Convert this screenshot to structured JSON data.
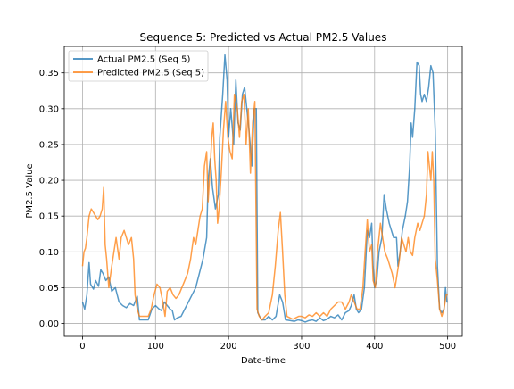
{
  "chart_data": {
    "type": "line",
    "title": "Sequence 5: Predicted vs Actual PM2.5 Values",
    "xlabel": "Date-time",
    "ylabel": "PM2.5 Value",
    "xlim": [
      -25,
      520
    ],
    "ylim": [
      -0.018,
      0.387
    ],
    "xticks": [
      0,
      100,
      200,
      300,
      400,
      500
    ],
    "yticks": [
      0.0,
      0.05,
      0.1,
      0.15,
      0.2,
      0.25,
      0.3,
      0.35
    ],
    "xtick_labels": [
      "0",
      "100",
      "200",
      "300",
      "400",
      "500"
    ],
    "ytick_labels": [
      "0.00",
      "0.05",
      "0.10",
      "0.15",
      "0.20",
      "0.25",
      "0.30",
      "0.35"
    ],
    "grid": true,
    "legend_position": "upper-left",
    "series": [
      {
        "name": "Actual PM2.5 (Seq 5)",
        "color": "#1f77b4",
        "points": [
          [
            0,
            0.03
          ],
          [
            3,
            0.02
          ],
          [
            6,
            0.04
          ],
          [
            9,
            0.085
          ],
          [
            11,
            0.055
          ],
          [
            15,
            0.048
          ],
          [
            18,
            0.06
          ],
          [
            22,
            0.052
          ],
          [
            25,
            0.075
          ],
          [
            28,
            0.07
          ],
          [
            32,
            0.06
          ],
          [
            36,
            0.065
          ],
          [
            40,
            0.045
          ],
          [
            45,
            0.05
          ],
          [
            50,
            0.03
          ],
          [
            55,
            0.025
          ],
          [
            60,
            0.022
          ],
          [
            65,
            0.028
          ],
          [
            70,
            0.025
          ],
          [
            75,
            0.038
          ],
          [
            78,
            0.005
          ],
          [
            82,
            0.005
          ],
          [
            90,
            0.005
          ],
          [
            95,
            0.02
          ],
          [
            100,
            0.025
          ],
          [
            105,
            0.02
          ],
          [
            108,
            0.018
          ],
          [
            112,
            0.03
          ],
          [
            116,
            0.025
          ],
          [
            120,
            0.02
          ],
          [
            123,
            0.018
          ],
          [
            126,
            0.005
          ],
          [
            130,
            0.008
          ],
          [
            135,
            0.01
          ],
          [
            140,
            0.02
          ],
          [
            145,
            0.03
          ],
          [
            150,
            0.04
          ],
          [
            155,
            0.05
          ],
          [
            160,
            0.07
          ],
          [
            165,
            0.09
          ],
          [
            170,
            0.12
          ],
          [
            172,
            0.2
          ],
          [
            175,
            0.23
          ],
          [
            178,
            0.19
          ],
          [
            182,
            0.16
          ],
          [
            186,
            0.18
          ],
          [
            188,
            0.26
          ],
          [
            192,
            0.32
          ],
          [
            195,
            0.375
          ],
          [
            198,
            0.34
          ],
          [
            200,
            0.26
          ],
          [
            203,
            0.3
          ],
          [
            207,
            0.25
          ],
          [
            210,
            0.34
          ],
          [
            213,
            0.28
          ],
          [
            216,
            0.27
          ],
          [
            219,
            0.32
          ],
          [
            222,
            0.33
          ],
          [
            225,
            0.3
          ],
          [
            228,
            0.27
          ],
          [
            232,
            0.22
          ],
          [
            235,
            0.3
          ],
          [
            238,
            0.3
          ],
          [
            240,
            0.015
          ],
          [
            245,
            0.005
          ],
          [
            250,
            0.005
          ],
          [
            255,
            0.01
          ],
          [
            260,
            0.005
          ],
          [
            265,
            0.01
          ],
          [
            270,
            0.04
          ],
          [
            274,
            0.03
          ],
          [
            278,
            0.005
          ],
          [
            285,
            0.004
          ],
          [
            290,
            0.003
          ],
          [
            295,
            0.005
          ],
          [
            300,
            0.004
          ],
          [
            305,
            0.002
          ],
          [
            310,
            0.004
          ],
          [
            315,
            0.005
          ],
          [
            320,
            0.003
          ],
          [
            325,
            0.008
          ],
          [
            330,
            0.004
          ],
          [
            335,
            0.006
          ],
          [
            340,
            0.01
          ],
          [
            345,
            0.008
          ],
          [
            350,
            0.012
          ],
          [
            355,
            0.005
          ],
          [
            360,
            0.015
          ],
          [
            365,
            0.018
          ],
          [
            368,
            0.025
          ],
          [
            372,
            0.04
          ],
          [
            375,
            0.02
          ],
          [
            378,
            0.015
          ],
          [
            382,
            0.02
          ],
          [
            386,
            0.05
          ],
          [
            390,
            0.13
          ],
          [
            393,
            0.12
          ],
          [
            396,
            0.14
          ],
          [
            398,
            0.08
          ],
          [
            400,
            0.05
          ],
          [
            403,
            0.06
          ],
          [
            406,
            0.1
          ],
          [
            410,
            0.12
          ],
          [
            413,
            0.18
          ],
          [
            416,
            0.16
          ],
          [
            420,
            0.14
          ],
          [
            423,
            0.13
          ],
          [
            426,
            0.12
          ],
          [
            430,
            0.12
          ],
          [
            432,
            0.08
          ],
          [
            435,
            0.1
          ],
          [
            438,
            0.13
          ],
          [
            442,
            0.15
          ],
          [
            445,
            0.17
          ],
          [
            448,
            0.22
          ],
          [
            450,
            0.28
          ],
          [
            452,
            0.26
          ],
          [
            455,
            0.3
          ],
          [
            458,
            0.365
          ],
          [
            461,
            0.36
          ],
          [
            463,
            0.32
          ],
          [
            465,
            0.31
          ],
          [
            468,
            0.32
          ],
          [
            471,
            0.31
          ],
          [
            474,
            0.33
          ],
          [
            477,
            0.36
          ],
          [
            480,
            0.35
          ],
          [
            483,
            0.27
          ],
          [
            486,
            0.08
          ],
          [
            489,
            0.02
          ],
          [
            492,
            0.015
          ],
          [
            495,
            0.02
          ],
          [
            497,
            0.05
          ],
          [
            499,
            0.03
          ],
          [
            500,
            0.03
          ]
        ]
      },
      {
        "name": "Predicted PM2.5 (Seq 5)",
        "color": "#ff7f0e",
        "points": [
          [
            0,
            0.08
          ],
          [
            2,
            0.1
          ],
          [
            4,
            0.105
          ],
          [
            6,
            0.12
          ],
          [
            9,
            0.15
          ],
          [
            12,
            0.16
          ],
          [
            15,
            0.155
          ],
          [
            18,
            0.15
          ],
          [
            21,
            0.145
          ],
          [
            24,
            0.15
          ],
          [
            27,
            0.16
          ],
          [
            29,
            0.19
          ],
          [
            31,
            0.11
          ],
          [
            33,
            0.09
          ],
          [
            36,
            0.05
          ],
          [
            40,
            0.08
          ],
          [
            43,
            0.1
          ],
          [
            46,
            0.12
          ],
          [
            50,
            0.09
          ],
          [
            53,
            0.12
          ],
          [
            57,
            0.13
          ],
          [
            60,
            0.12
          ],
          [
            63,
            0.11
          ],
          [
            67,
            0.12
          ],
          [
            70,
            0.09
          ],
          [
            72,
            0.04
          ],
          [
            75,
            0.02
          ],
          [
            78,
            0.01
          ],
          [
            82,
            0.01
          ],
          [
            86,
            0.01
          ],
          [
            90,
            0.01
          ],
          [
            94,
            0.02
          ],
          [
            98,
            0.04
          ],
          [
            102,
            0.055
          ],
          [
            106,
            0.05
          ],
          [
            110,
            0.03
          ],
          [
            113,
            0.01
          ],
          [
            116,
            0.045
          ],
          [
            120,
            0.05
          ],
          [
            124,
            0.04
          ],
          [
            128,
            0.035
          ],
          [
            132,
            0.04
          ],
          [
            136,
            0.05
          ],
          [
            140,
            0.06
          ],
          [
            144,
            0.07
          ],
          [
            148,
            0.09
          ],
          [
            152,
            0.12
          ],
          [
            155,
            0.11
          ],
          [
            158,
            0.13
          ],
          [
            161,
            0.15
          ],
          [
            164,
            0.16
          ],
          [
            167,
            0.22
          ],
          [
            170,
            0.24
          ],
          [
            172,
            0.17
          ],
          [
            175,
            0.22
          ],
          [
            177,
            0.26
          ],
          [
            179,
            0.28
          ],
          [
            181,
            0.23
          ],
          [
            183,
            0.2
          ],
          [
            185,
            0.14
          ],
          [
            187,
            0.16
          ],
          [
            190,
            0.21
          ],
          [
            193,
            0.27
          ],
          [
            196,
            0.31
          ],
          [
            199,
            0.26
          ],
          [
            202,
            0.24
          ],
          [
            205,
            0.23
          ],
          [
            208,
            0.32
          ],
          [
            212,
            0.3
          ],
          [
            215,
            0.26
          ],
          [
            218,
            0.31
          ],
          [
            221,
            0.32
          ],
          [
            224,
            0.25
          ],
          [
            227,
            0.3
          ],
          [
            230,
            0.21
          ],
          [
            233,
            0.28
          ],
          [
            236,
            0.31
          ],
          [
            239,
            0.02
          ],
          [
            242,
            0.01
          ],
          [
            246,
            0.005
          ],
          [
            250,
            0.01
          ],
          [
            255,
            0.015
          ],
          [
            260,
            0.04
          ],
          [
            264,
            0.08
          ],
          [
            268,
            0.13
          ],
          [
            271,
            0.155
          ],
          [
            274,
            0.1
          ],
          [
            277,
            0.04
          ],
          [
            280,
            0.01
          ],
          [
            284,
            0.008
          ],
          [
            288,
            0.006
          ],
          [
            292,
            0.008
          ],
          [
            296,
            0.01
          ],
          [
            300,
            0.01
          ],
          [
            305,
            0.008
          ],
          [
            310,
            0.012
          ],
          [
            315,
            0.01
          ],
          [
            320,
            0.015
          ],
          [
            325,
            0.01
          ],
          [
            330,
            0.015
          ],
          [
            335,
            0.01
          ],
          [
            340,
            0.02
          ],
          [
            345,
            0.025
          ],
          [
            350,
            0.03
          ],
          [
            355,
            0.03
          ],
          [
            360,
            0.02
          ],
          [
            365,
            0.03
          ],
          [
            368,
            0.04
          ],
          [
            372,
            0.03
          ],
          [
            376,
            0.02
          ],
          [
            380,
            0.02
          ],
          [
            384,
            0.05
          ],
          [
            387,
            0.1
          ],
          [
            390,
            0.145
          ],
          [
            393,
            0.1
          ],
          [
            396,
            0.11
          ],
          [
            398,
            0.06
          ],
          [
            401,
            0.05
          ],
          [
            404,
            0.1
          ],
          [
            408,
            0.14
          ],
          [
            411,
            0.12
          ],
          [
            414,
            0.1
          ],
          [
            418,
            0.09
          ],
          [
            421,
            0.08
          ],
          [
            424,
            0.07
          ],
          [
            428,
            0.05
          ],
          [
            431,
            0.07
          ],
          [
            434,
            0.09
          ],
          [
            437,
            0.12
          ],
          [
            440,
            0.11
          ],
          [
            443,
            0.1
          ],
          [
            446,
            0.12
          ],
          [
            449,
            0.1
          ],
          [
            452,
            0.095
          ],
          [
            455,
            0.12
          ],
          [
            459,
            0.14
          ],
          [
            462,
            0.13
          ],
          [
            465,
            0.14
          ],
          [
            468,
            0.15
          ],
          [
            471,
            0.18
          ],
          [
            473,
            0.24
          ],
          [
            475,
            0.22
          ],
          [
            477,
            0.2
          ],
          [
            479,
            0.24
          ],
          [
            481,
            0.2
          ],
          [
            483,
            0.09
          ],
          [
            486,
            0.06
          ],
          [
            489,
            0.02
          ],
          [
            492,
            0.01
          ],
          [
            495,
            0.02
          ],
          [
            498,
            0.04
          ],
          [
            500,
            0.04
          ]
        ]
      }
    ]
  }
}
